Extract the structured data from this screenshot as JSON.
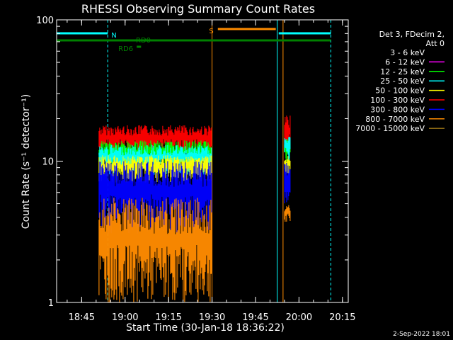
{
  "chart_data": {
    "type": "line",
    "title": "RHESSI Observing Summary Count Rates",
    "xlabel": "Start Time (30-Jan-18 18:36:22)",
    "ylabel": "Count Rate (s⁻¹ detector⁻¹)",
    "y_scale": "log",
    "ylim": [
      1,
      100
    ],
    "xlim": [
      "18:36:22",
      "20:17:00"
    ],
    "x_tick_labels": [
      "18:45",
      "19:00",
      "19:15",
      "19:30",
      "19:45",
      "20:00",
      "20:15"
    ],
    "y_tick_labels": [
      "1",
      "10",
      "100"
    ],
    "legend": {
      "header_lines": [
        "Det 3, FDecim 2,",
        "Att 0"
      ],
      "placement": "right",
      "entries": [
        {
          "label": "3 - 6 keV",
          "color": "#000000"
        },
        {
          "label": "6 - 12 keV",
          "color": "#ff00ff"
        },
        {
          "label": "12 - 25 keV",
          "color": "#00ff00"
        },
        {
          "label": "25 - 50 keV",
          "color": "#00ffff"
        },
        {
          "label": "50 - 100 keV",
          "color": "#ffff00"
        },
        {
          "label": "100 - 300 keV",
          "color": "#ff0000"
        },
        {
          "label": "300 - 800 keV",
          "color": "#0000ff"
        },
        {
          "label": "800 - 7000 keV",
          "color": "#ff8c00"
        },
        {
          "label": "7000 - 15000 keV",
          "color": "#8b6914"
        }
      ]
    },
    "flag_bars": [
      {
        "label": "N",
        "color": "#00ffff",
        "segments": [
          [
            "18:36:22",
            "18:54:00"
          ],
          [
            "19:53:00",
            "20:11:00"
          ]
        ]
      },
      {
        "label": "S",
        "color": "#ff8c00",
        "segments": [
          [
            "19:32:00",
            "19:52:00"
          ]
        ]
      },
      {
        "label": "RD0",
        "color": "#008000",
        "segments": [
          [
            "18:36:22",
            "20:11:00"
          ]
        ]
      },
      {
        "label": "RD6",
        "color": "#008000",
        "segments": [
          [
            "19:04:00",
            "19:05:30"
          ]
        ]
      }
    ],
    "vertical_markers": [
      {
        "time": "18:54:00",
        "color": "#00ffff",
        "style": "dashed"
      },
      {
        "time": "20:11:00",
        "color": "#00ffff",
        "style": "dashed"
      },
      {
        "time": "18:36:22",
        "color": "#00ffff",
        "style": "solid"
      },
      {
        "time": "19:52:30",
        "color": "#00ffff",
        "style": "solid"
      },
      {
        "time": "19:30:00",
        "color": "#ff8c00",
        "style": "solid"
      },
      {
        "time": "19:54:30",
        "color": "#ff8c00",
        "style": "solid"
      }
    ],
    "series": [
      {
        "name": "100 - 300 keV",
        "color": "#ff0000",
        "segments": [
          {
            "start": "18:51:00",
            "end": "19:30:00",
            "low": 11,
            "high": 18
          },
          {
            "start": "19:55:00",
            "end": "19:57:00",
            "low": 11,
            "high": 21
          }
        ]
      },
      {
        "name": "12 - 25 keV",
        "color": "#00ff00",
        "segments": [
          {
            "start": "18:51:00",
            "end": "19:30:00",
            "low": 9,
            "high": 14
          },
          {
            "start": "19:55:00",
            "end": "19:57:00",
            "low": 10,
            "high": 15
          }
        ]
      },
      {
        "name": "25 - 50 keV",
        "color": "#00ffff",
        "segments": [
          {
            "start": "18:51:00",
            "end": "19:30:00",
            "low": 8,
            "high": 13
          },
          {
            "start": "19:55:00",
            "end": "19:57:00",
            "low": 10,
            "high": 15
          }
        ]
      },
      {
        "name": "50 - 100 keV",
        "color": "#ffff00",
        "segments": [
          {
            "start": "18:51:00",
            "end": "19:30:00",
            "low": 7,
            "high": 11
          },
          {
            "start": "19:55:00",
            "end": "19:57:00",
            "low": 8,
            "high": 11
          }
        ]
      },
      {
        "name": "300 - 800 keV",
        "color": "#0000ff",
        "segments": [
          {
            "start": "18:51:00",
            "end": "19:30:00",
            "low": 3,
            "high": 10
          },
          {
            "start": "19:55:00",
            "end": "19:57:00",
            "low": 5,
            "high": 10
          }
        ]
      },
      {
        "name": "800 - 7000 keV",
        "color": "#ff8c00",
        "segments": [
          {
            "start": "18:51:00",
            "end": "19:30:00",
            "low": 1,
            "high": 5.5
          },
          {
            "start": "19:55:00",
            "end": "19:57:00",
            "low": 3.5,
            "high": 5
          }
        ]
      }
    ]
  },
  "footer": {
    "date_stamp": "2-Sep-2022 18:01"
  }
}
